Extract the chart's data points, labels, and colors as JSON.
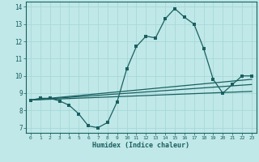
{
  "xlabel": "Humidex (Indice chaleur)",
  "background_color": "#c0e8e8",
  "grid_color": "#a8d8d8",
  "line_color": "#1a6060",
  "xlim": [
    -0.5,
    23.5
  ],
  "ylim": [
    6.7,
    14.3
  ],
  "yticks": [
    7,
    8,
    9,
    10,
    11,
    12,
    13,
    14
  ],
  "xticks": [
    0,
    1,
    2,
    3,
    4,
    5,
    6,
    7,
    8,
    9,
    10,
    11,
    12,
    13,
    14,
    15,
    16,
    17,
    18,
    19,
    20,
    21,
    22,
    23
  ],
  "main_x": [
    0,
    1,
    2,
    3,
    4,
    5,
    6,
    7,
    8,
    9,
    10,
    11,
    12,
    13,
    14,
    15,
    16,
    17,
    18,
    19,
    20,
    21,
    22,
    23
  ],
  "main_y": [
    8.6,
    8.7,
    8.7,
    8.55,
    8.3,
    7.8,
    7.1,
    7.0,
    7.3,
    8.5,
    10.4,
    11.7,
    12.3,
    12.2,
    13.3,
    13.9,
    13.4,
    13.0,
    11.6,
    9.8,
    9.0,
    9.5,
    10.0,
    10.0
  ],
  "line2_x": [
    0,
    23
  ],
  "line2_y": [
    8.6,
    9.8
  ],
  "line3_x": [
    0,
    23
  ],
  "line3_y": [
    8.6,
    9.5
  ],
  "line4_x": [
    0,
    23
  ],
  "line4_y": [
    8.6,
    9.1
  ]
}
